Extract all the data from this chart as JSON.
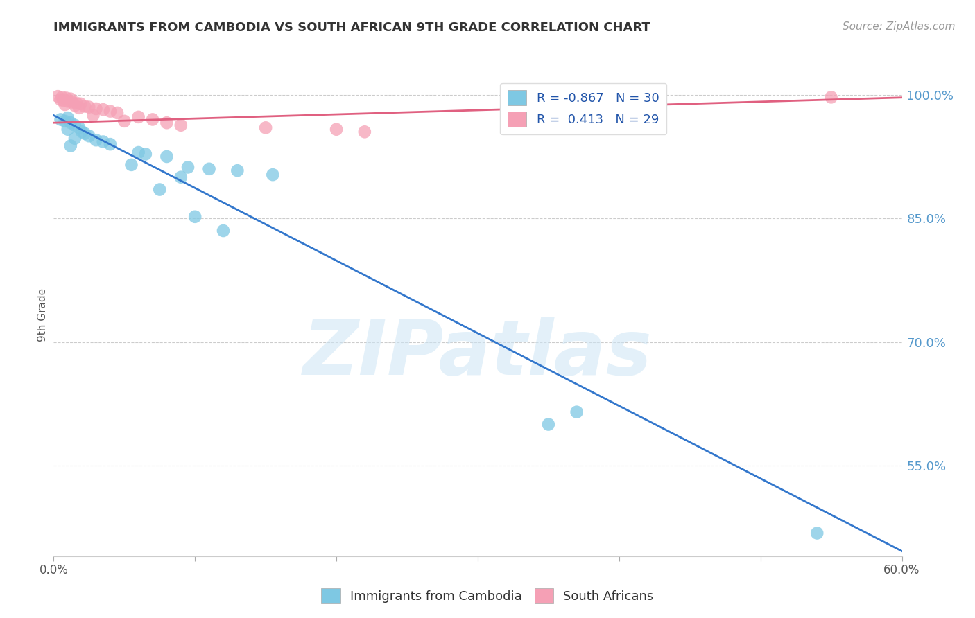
{
  "title": "IMMIGRANTS FROM CAMBODIA VS SOUTH AFRICAN 9TH GRADE CORRELATION CHART",
  "source": "Source: ZipAtlas.com",
  "ylabel": "9th Grade",
  "legend_label_1": "Immigrants from Cambodia",
  "legend_label_2": "South Africans",
  "r1": -0.867,
  "n1": 30,
  "r2": 0.413,
  "n2": 29,
  "color_blue": "#7ec8e3",
  "color_pink": "#f5a0b5",
  "color_blue_line": "#3377cc",
  "color_pink_line": "#e06080",
  "xlim": [
    0.0,
    0.6
  ],
  "ylim": [
    0.44,
    1.025
  ],
  "yticks": [
    1.0,
    0.85,
    0.7,
    0.55
  ],
  "ytick_labels": [
    "100.0%",
    "85.0%",
    "70.0%",
    "55.0%"
  ],
  "blue_points": [
    [
      0.005,
      0.97
    ],
    [
      0.008,
      0.968
    ],
    [
      0.01,
      0.972
    ],
    [
      0.012,
      0.966
    ],
    [
      0.015,
      0.963
    ],
    [
      0.018,
      0.96
    ],
    [
      0.01,
      0.958
    ],
    [
      0.02,
      0.955
    ],
    [
      0.022,
      0.953
    ],
    [
      0.025,
      0.95
    ],
    [
      0.015,
      0.947
    ],
    [
      0.03,
      0.945
    ],
    [
      0.035,
      0.943
    ],
    [
      0.04,
      0.94
    ],
    [
      0.012,
      0.938
    ],
    [
      0.06,
      0.93
    ],
    [
      0.065,
      0.928
    ],
    [
      0.08,
      0.925
    ],
    [
      0.055,
      0.915
    ],
    [
      0.095,
      0.912
    ],
    [
      0.11,
      0.91
    ],
    [
      0.13,
      0.908
    ],
    [
      0.09,
      0.9
    ],
    [
      0.155,
      0.903
    ],
    [
      0.075,
      0.885
    ],
    [
      0.1,
      0.852
    ],
    [
      0.12,
      0.835
    ],
    [
      0.37,
      0.615
    ],
    [
      0.35,
      0.6
    ],
    [
      0.54,
      0.468
    ]
  ],
  "pink_points": [
    [
      0.003,
      0.998
    ],
    [
      0.006,
      0.997
    ],
    [
      0.009,
      0.996
    ],
    [
      0.012,
      0.995
    ],
    [
      0.005,
      0.994
    ],
    [
      0.007,
      0.993
    ],
    [
      0.01,
      0.992
    ],
    [
      0.013,
      0.991
    ],
    [
      0.016,
      0.99
    ],
    [
      0.019,
      0.989
    ],
    [
      0.008,
      0.988
    ],
    [
      0.015,
      0.987
    ],
    [
      0.022,
      0.986
    ],
    [
      0.025,
      0.985
    ],
    [
      0.018,
      0.984
    ],
    [
      0.03,
      0.983
    ],
    [
      0.035,
      0.982
    ],
    [
      0.04,
      0.98
    ],
    [
      0.045,
      0.978
    ],
    [
      0.028,
      0.975
    ],
    [
      0.06,
      0.973
    ],
    [
      0.07,
      0.97
    ],
    [
      0.05,
      0.968
    ],
    [
      0.08,
      0.966
    ],
    [
      0.09,
      0.963
    ],
    [
      0.15,
      0.96
    ],
    [
      0.2,
      0.958
    ],
    [
      0.22,
      0.955
    ],
    [
      0.55,
      0.997
    ]
  ],
  "blue_line_x": [
    0.0,
    0.607
  ],
  "blue_line_y": [
    0.975,
    0.44
  ],
  "pink_line_x": [
    0.0,
    0.607
  ],
  "pink_line_y": [
    0.966,
    0.997
  ],
  "watermark": "ZIPatlas",
  "background_color": "#ffffff",
  "grid_color": "#cccccc"
}
